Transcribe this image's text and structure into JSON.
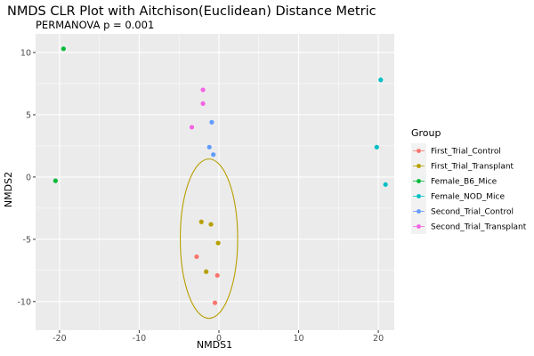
{
  "chart_data": {
    "type": "scatter",
    "title": "NMDS CLR Plot with Aitchison(Euclidean) Distance Metric",
    "subtitle": "PERMANOVA p = 0.001",
    "xlabel": "NMDS1",
    "ylabel": "NMDS2",
    "xlim": [
      -23,
      22
    ],
    "ylim": [
      -12.3,
      11.5
    ],
    "xticks": [
      -20,
      -10,
      0,
      10,
      20
    ],
    "yticks": [
      10,
      5,
      0,
      -5,
      -10
    ],
    "xtick_labels": [
      "-20",
      "-10",
      "0",
      "10",
      "20"
    ],
    "ytick_labels": [
      "10",
      "5",
      "0",
      "-5",
      "-10"
    ],
    "grid": true,
    "panel_background": "#ebebeb",
    "legend": {
      "title": "Group",
      "position": "right"
    },
    "series": [
      {
        "name": "First_Trial_Control",
        "color": "#f8766d",
        "points": [
          [
            -2.8,
            -6.4
          ],
          [
            -0.2,
            -7.9
          ],
          [
            -0.5,
            -10.1
          ]
        ]
      },
      {
        "name": "First_Trial_Transplant",
        "color": "#b79f00",
        "points": [
          [
            -2.2,
            -3.6
          ],
          [
            -1.0,
            -3.8
          ],
          [
            -0.1,
            -5.3
          ],
          [
            -1.6,
            -7.6
          ]
        ]
      },
      {
        "name": "Female_B6_Mice",
        "color": "#00ba38",
        "points": [
          [
            -19.5,
            10.3
          ],
          [
            -20.5,
            -0.3
          ]
        ]
      },
      {
        "name": "Female_NOD_Mice",
        "color": "#00bfc4",
        "points": [
          [
            20.3,
            7.8
          ],
          [
            19.8,
            2.4
          ],
          [
            20.9,
            -0.6
          ]
        ]
      },
      {
        "name": "Second_Trial_Control",
        "color": "#619cff",
        "points": [
          [
            -0.9,
            4.4
          ],
          [
            -1.2,
            2.4
          ],
          [
            -0.7,
            1.8
          ]
        ]
      },
      {
        "name": "Second_Trial_Transplant",
        "color": "#f564e3",
        "points": [
          [
            -2.0,
            7.0
          ],
          [
            -2.0,
            5.9
          ],
          [
            -3.4,
            4.0
          ]
        ]
      }
    ],
    "ellipse": {
      "group": "First_Trial_Transplant",
      "color": "#b79f00",
      "center": [
        -1.25,
        -4.95
      ],
      "radius_x": 3.6,
      "radius_y": 6.4
    }
  }
}
